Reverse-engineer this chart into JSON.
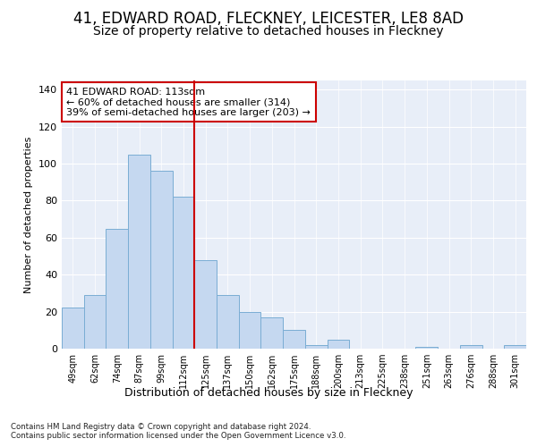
{
  "title1": "41, EDWARD ROAD, FLECKNEY, LEICESTER, LE8 8AD",
  "title2": "Size of property relative to detached houses in Fleckney",
  "xlabel": "Distribution of detached houses by size in Fleckney",
  "ylabel": "Number of detached properties",
  "categories": [
    "49sqm",
    "62sqm",
    "74sqm",
    "87sqm",
    "99sqm",
    "112sqm",
    "125sqm",
    "137sqm",
    "150sqm",
    "162sqm",
    "175sqm",
    "188sqm",
    "200sqm",
    "213sqm",
    "225sqm",
    "238sqm",
    "251sqm",
    "263sqm",
    "276sqm",
    "288sqm",
    "301sqm"
  ],
  "bar_values": [
    22,
    29,
    65,
    105,
    96,
    82,
    48,
    29,
    20,
    17,
    10,
    2,
    5,
    0,
    0,
    0,
    1,
    0,
    2,
    0,
    2
  ],
  "bar_color": "#c5d8f0",
  "bar_edge_color": "#7aadd4",
  "vline_color": "#cc0000",
  "annotation_text": "41 EDWARD ROAD: 113sqm\n← 60% of detached houses are smaller (314)\n39% of semi-detached houses are larger (203) →",
  "annotation_box_color": "#ffffff",
  "annotation_box_edge": "#cc0000",
  "ylim": [
    0,
    145
  ],
  "yticks": [
    0,
    20,
    40,
    60,
    80,
    100,
    120,
    140
  ],
  "footnote": "Contains HM Land Registry data © Crown copyright and database right 2024.\nContains public sector information licensed under the Open Government Licence v3.0.",
  "plot_bg": "#e8eef8",
  "fig_bg": "#ffffff",
  "title1_fontsize": 12,
  "title2_fontsize": 10,
  "vline_x_index": 5
}
